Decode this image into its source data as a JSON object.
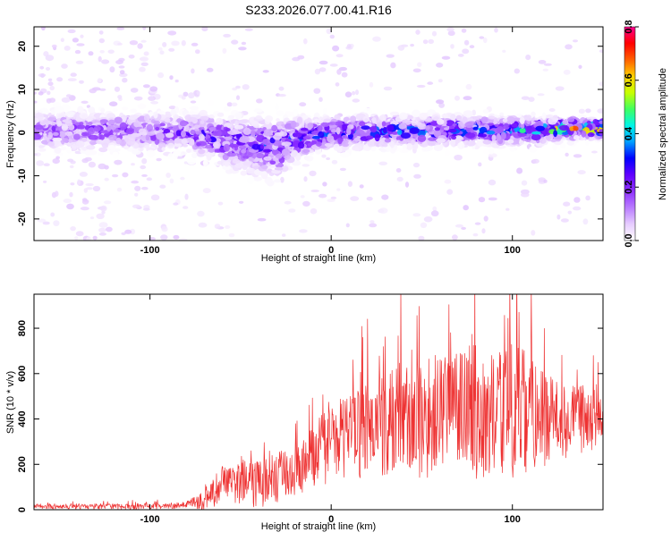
{
  "title": "S233.2026.077.00.41.R16",
  "colors": {
    "snr_line": "#ee3333",
    "background": "#ffffff",
    "axis": "#000000",
    "colormap": [
      "#ffffff",
      "#e6ccff",
      "#b97cff",
      "#8f32ff",
      "#6000ff",
      "#0000ff",
      "#00a0ff",
      "#00f5e8",
      "#40ff60",
      "#c8ff00",
      "#ffd000",
      "#ff6000",
      "#ff0000",
      "#ff0090"
    ]
  },
  "chart_data": [
    {
      "type": "heatmap",
      "xlabel": "Height of straight line (km)",
      "ylabel": "Frequency (Hz)",
      "xlim": [
        -164,
        150
      ],
      "ylim": [
        -25,
        24.5
      ],
      "x_ticks": [
        -100,
        0,
        100
      ],
      "x_tick_labels": [
        "-100",
        "0",
        "100"
      ],
      "y_ticks": [
        -20,
        -10,
        0,
        10,
        20
      ],
      "y_tick_labels": [
        "-20",
        "-10",
        "0",
        "10",
        "20"
      ],
      "colorbar": {
        "label": "Normalized spectral amplitude",
        "range": [
          0,
          0.8
        ],
        "ticks": [
          0.0,
          0.2,
          0.4,
          0.6,
          0.8
        ],
        "tick_labels": [
          "0.0",
          "0.2",
          "0.4",
          "0.6",
          "0.8"
        ]
      },
      "band": {
        "center_hz": [
          {
            "x": -164,
            "y": 0.5
          },
          {
            "x": -120,
            "y": 0.5
          },
          {
            "x": -80,
            "y": 0.0
          },
          {
            "x": -50,
            "y": -2.5
          },
          {
            "x": -30,
            "y": -3.5
          },
          {
            "x": -20,
            "y": -1.5
          },
          {
            "x": 0,
            "y": 0.0
          },
          {
            "x": 50,
            "y": 0.5
          },
          {
            "x": 100,
            "y": 0.5
          },
          {
            "x": 150,
            "y": 1.0
          }
        ],
        "half_width_hz": [
          {
            "x": -164,
            "y": 4.0
          },
          {
            "x": -80,
            "y": 4.0
          },
          {
            "x": -50,
            "y": 6.0
          },
          {
            "x": -30,
            "y": 6.5
          },
          {
            "x": -20,
            "y": 4.5
          },
          {
            "x": 0,
            "y": 3.5
          },
          {
            "x": 100,
            "y": 3.0
          },
          {
            "x": 150,
            "y": 2.0
          }
        ],
        "peak_amplitude": [
          {
            "x": -164,
            "y": 0.2
          },
          {
            "x": -80,
            "y": 0.25
          },
          {
            "x": -40,
            "y": 0.32
          },
          {
            "x": 0,
            "y": 0.33
          },
          {
            "x": 50,
            "y": 0.35
          },
          {
            "x": 100,
            "y": 0.4
          },
          {
            "x": 120,
            "y": 0.55
          },
          {
            "x": 150,
            "y": 0.72
          }
        ]
      }
    },
    {
      "type": "line",
      "xlabel": "Height of straight line (km)",
      "ylabel": "SNR (10 * v/v)",
      "xlim": [
        -164,
        150
      ],
      "ylim": [
        0,
        950
      ],
      "x_ticks": [
        -100,
        0,
        100
      ],
      "x_tick_labels": [
        "-100",
        "0",
        "100"
      ],
      "y_ticks": [
        0,
        200,
        400,
        600,
        800
      ],
      "y_tick_labels": [
        "0",
        "200",
        "400",
        "600",
        "800"
      ],
      "series": [
        {
          "mean": [
            {
              "x": -164,
              "y": 15
            },
            {
              "x": -100,
              "y": 15
            },
            {
              "x": -80,
              "y": 20
            },
            {
              "x": -70,
              "y": 40
            },
            {
              "x": -60,
              "y": 110
            },
            {
              "x": -50,
              "y": 120
            },
            {
              "x": -40,
              "y": 110
            },
            {
              "x": -30,
              "y": 140
            },
            {
              "x": -20,
              "y": 180
            },
            {
              "x": -10,
              "y": 240
            },
            {
              "x": 0,
              "y": 290
            },
            {
              "x": 10,
              "y": 330
            },
            {
              "x": 20,
              "y": 350
            },
            {
              "x": 30,
              "y": 380
            },
            {
              "x": 40,
              "y": 420
            },
            {
              "x": 50,
              "y": 400
            },
            {
              "x": 60,
              "y": 420
            },
            {
              "x": 70,
              "y": 440
            },
            {
              "x": 80,
              "y": 430
            },
            {
              "x": 90,
              "y": 420
            },
            {
              "x": 100,
              "y": 440
            },
            {
              "x": 110,
              "y": 420
            },
            {
              "x": 120,
              "y": 400
            },
            {
              "x": 130,
              "y": 390
            },
            {
              "x": 140,
              "y": 400
            },
            {
              "x": 150,
              "y": 390
            }
          ],
          "spread": [
            {
              "x": -164,
              "y": 8
            },
            {
              "x": -80,
              "y": 10
            },
            {
              "x": -60,
              "y": 60
            },
            {
              "x": -20,
              "y": 90
            },
            {
              "x": 20,
              "y": 150
            },
            {
              "x": 60,
              "y": 200
            },
            {
              "x": 100,
              "y": 220
            },
            {
              "x": 130,
              "y": 120
            },
            {
              "x": 150,
              "y": 90
            }
          ]
        }
      ]
    }
  ]
}
